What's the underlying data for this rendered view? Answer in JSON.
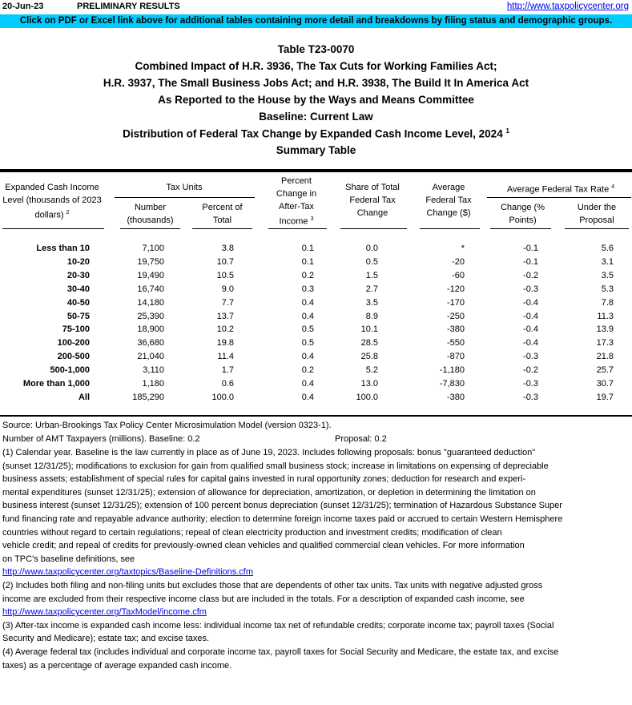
{
  "header": {
    "date": "20-Jun-23",
    "status": "PRELIMINARY RESULTS",
    "link": "http://www.taxpolicycenter.org"
  },
  "banner": "Click on PDF or Excel link above for additional tables containing more detail and breakdowns by filing status and demographic groups.",
  "titles": [
    "Table T23-0070",
    "Combined Impact of H.R. 3936, The Tax Cuts for Working Families Act;",
    "H.R. 3937, The Small Business Jobs Act; and H.R. 3938, The Build It In America Act",
    "As Reported to the House by the Ways and Means Committee",
    "Baseline: Current Law",
    "Distribution of Federal Tax Change by Expanded Cash Income Level, 2024",
    "Summary Table"
  ],
  "title_sup": "1",
  "columns": {
    "income": "Expanded Cash Income Level (thousands of 2023 dollars)",
    "income_sup": "2",
    "tax_units": "Tax Units",
    "number": "Number (thousands)",
    "percent": "Percent of Total",
    "pct_change": "Percent Change in After-Tax Income",
    "pct_change_sup": "3",
    "share": "Share of Total Federal Tax Change",
    "avg_change": "Average Federal Tax Change ($)",
    "avg_rate": "Average Federal Tax Rate",
    "avg_rate_sup": "4",
    "rate_change": "Change (% Points)",
    "rate_under": "Under the Proposal"
  },
  "rows": [
    [
      "Less than 10",
      "7,100",
      "3.8",
      "0.1",
      "0.0",
      "*",
      "-0.1",
      "5.6"
    ],
    [
      "10-20",
      "19,750",
      "10.7",
      "0.1",
      "0.5",
      "-20",
      "-0.1",
      "3.1"
    ],
    [
      "20-30",
      "19,490",
      "10.5",
      "0.2",
      "1.5",
      "-60",
      "-0.2",
      "3.5"
    ],
    [
      "30-40",
      "16,740",
      "9.0",
      "0.3",
      "2.7",
      "-120",
      "-0.3",
      "5.3"
    ],
    [
      "40-50",
      "14,180",
      "7.7",
      "0.4",
      "3.5",
      "-170",
      "-0.4",
      "7.8"
    ],
    [
      "50-75",
      "25,390",
      "13.7",
      "0.4",
      "8.9",
      "-250",
      "-0.4",
      "11.3"
    ],
    [
      "75-100",
      "18,900",
      "10.2",
      "0.5",
      "10.1",
      "-380",
      "-0.4",
      "13.9"
    ],
    [
      "100-200",
      "36,680",
      "19.8",
      "0.5",
      "28.5",
      "-550",
      "-0.4",
      "17.3"
    ],
    [
      "200-500",
      "21,040",
      "11.4",
      "0.4",
      "25.8",
      "-870",
      "-0.3",
      "21.8"
    ],
    [
      "500-1,000",
      "3,110",
      "1.7",
      "0.2",
      "5.2",
      "-1,180",
      "-0.2",
      "25.7"
    ],
    [
      "More than 1,000",
      "1,180",
      "0.6",
      "0.4",
      "13.0",
      "-7,830",
      "-0.3",
      "30.7"
    ],
    [
      "All",
      "185,290",
      "100.0",
      "0.4",
      "100.0",
      "-380",
      "-0.3",
      "19.7"
    ]
  ],
  "footnotes": {
    "source": "Source: Urban-Brookings Tax Policy Center Microsimulation Model (version 0323-1).",
    "amt": "Number of AMT Taxpayers (millions).  Baseline: 0.2",
    "amt_proposal": "Proposal: 0.2",
    "lines": [
      "(1) Calendar year. Baseline is the law currently in place as of June 19, 2023. Includes following proposals: bonus \"guaranteed deduction\"",
      "(sunset 12/31/25); modifications to exclusion for gain from qualified small business stock; increase in limitations on expensing of depreciable",
      "business assets; establishment of special rules for capital gains invested in rural opportunity zones; deduction for research and experi-",
      "mental expenditures (sunset 12/31/25); extension of allowance for depreciation, amortization, or depletion in determining the limitation on",
      "business interest (sunset 12/31/25); extension of 100 percent bonus depreciation (sunset 12/31/25); termination of Hazardous Substance Super",
      "fund financing rate and repayable advance authority; election to determine foreign income taxes paid or accrued to certain Western Hemisphere",
      "countries without regard to certain regulations; repeal of clean electricity production and investment credits; modification of clean",
      "vehicle credit; and repeal of credits for previously-owned clean vehicles and qualified commercial clean vehicles. For more information",
      "on TPC's baseline definitions, see"
    ],
    "link1": "http://www.taxpolicycenter.org/taxtopics/Baseline-Definitions.cfm",
    "lines2": [
      "(2) Includes both filing and non-filing units but excludes those that are dependents of other tax units. Tax units with negative adjusted gross",
      "income are excluded from their respective income class but are included in the totals. For a description of expanded cash income, see"
    ],
    "link2": "http://www.taxpolicycenter.org/TaxModel/income.cfm",
    "lines3": [
      "(3) After-tax income is expanded cash income less: individual income tax net of refundable credits; corporate income tax; payroll taxes (Social",
      "Security and Medicare); estate tax; and excise taxes.",
      "(4) Average federal tax (includes individual and corporate income tax, payroll taxes for Social Security and Medicare, the estate tax, and excise",
      "taxes) as a percentage of average expanded cash income."
    ]
  }
}
